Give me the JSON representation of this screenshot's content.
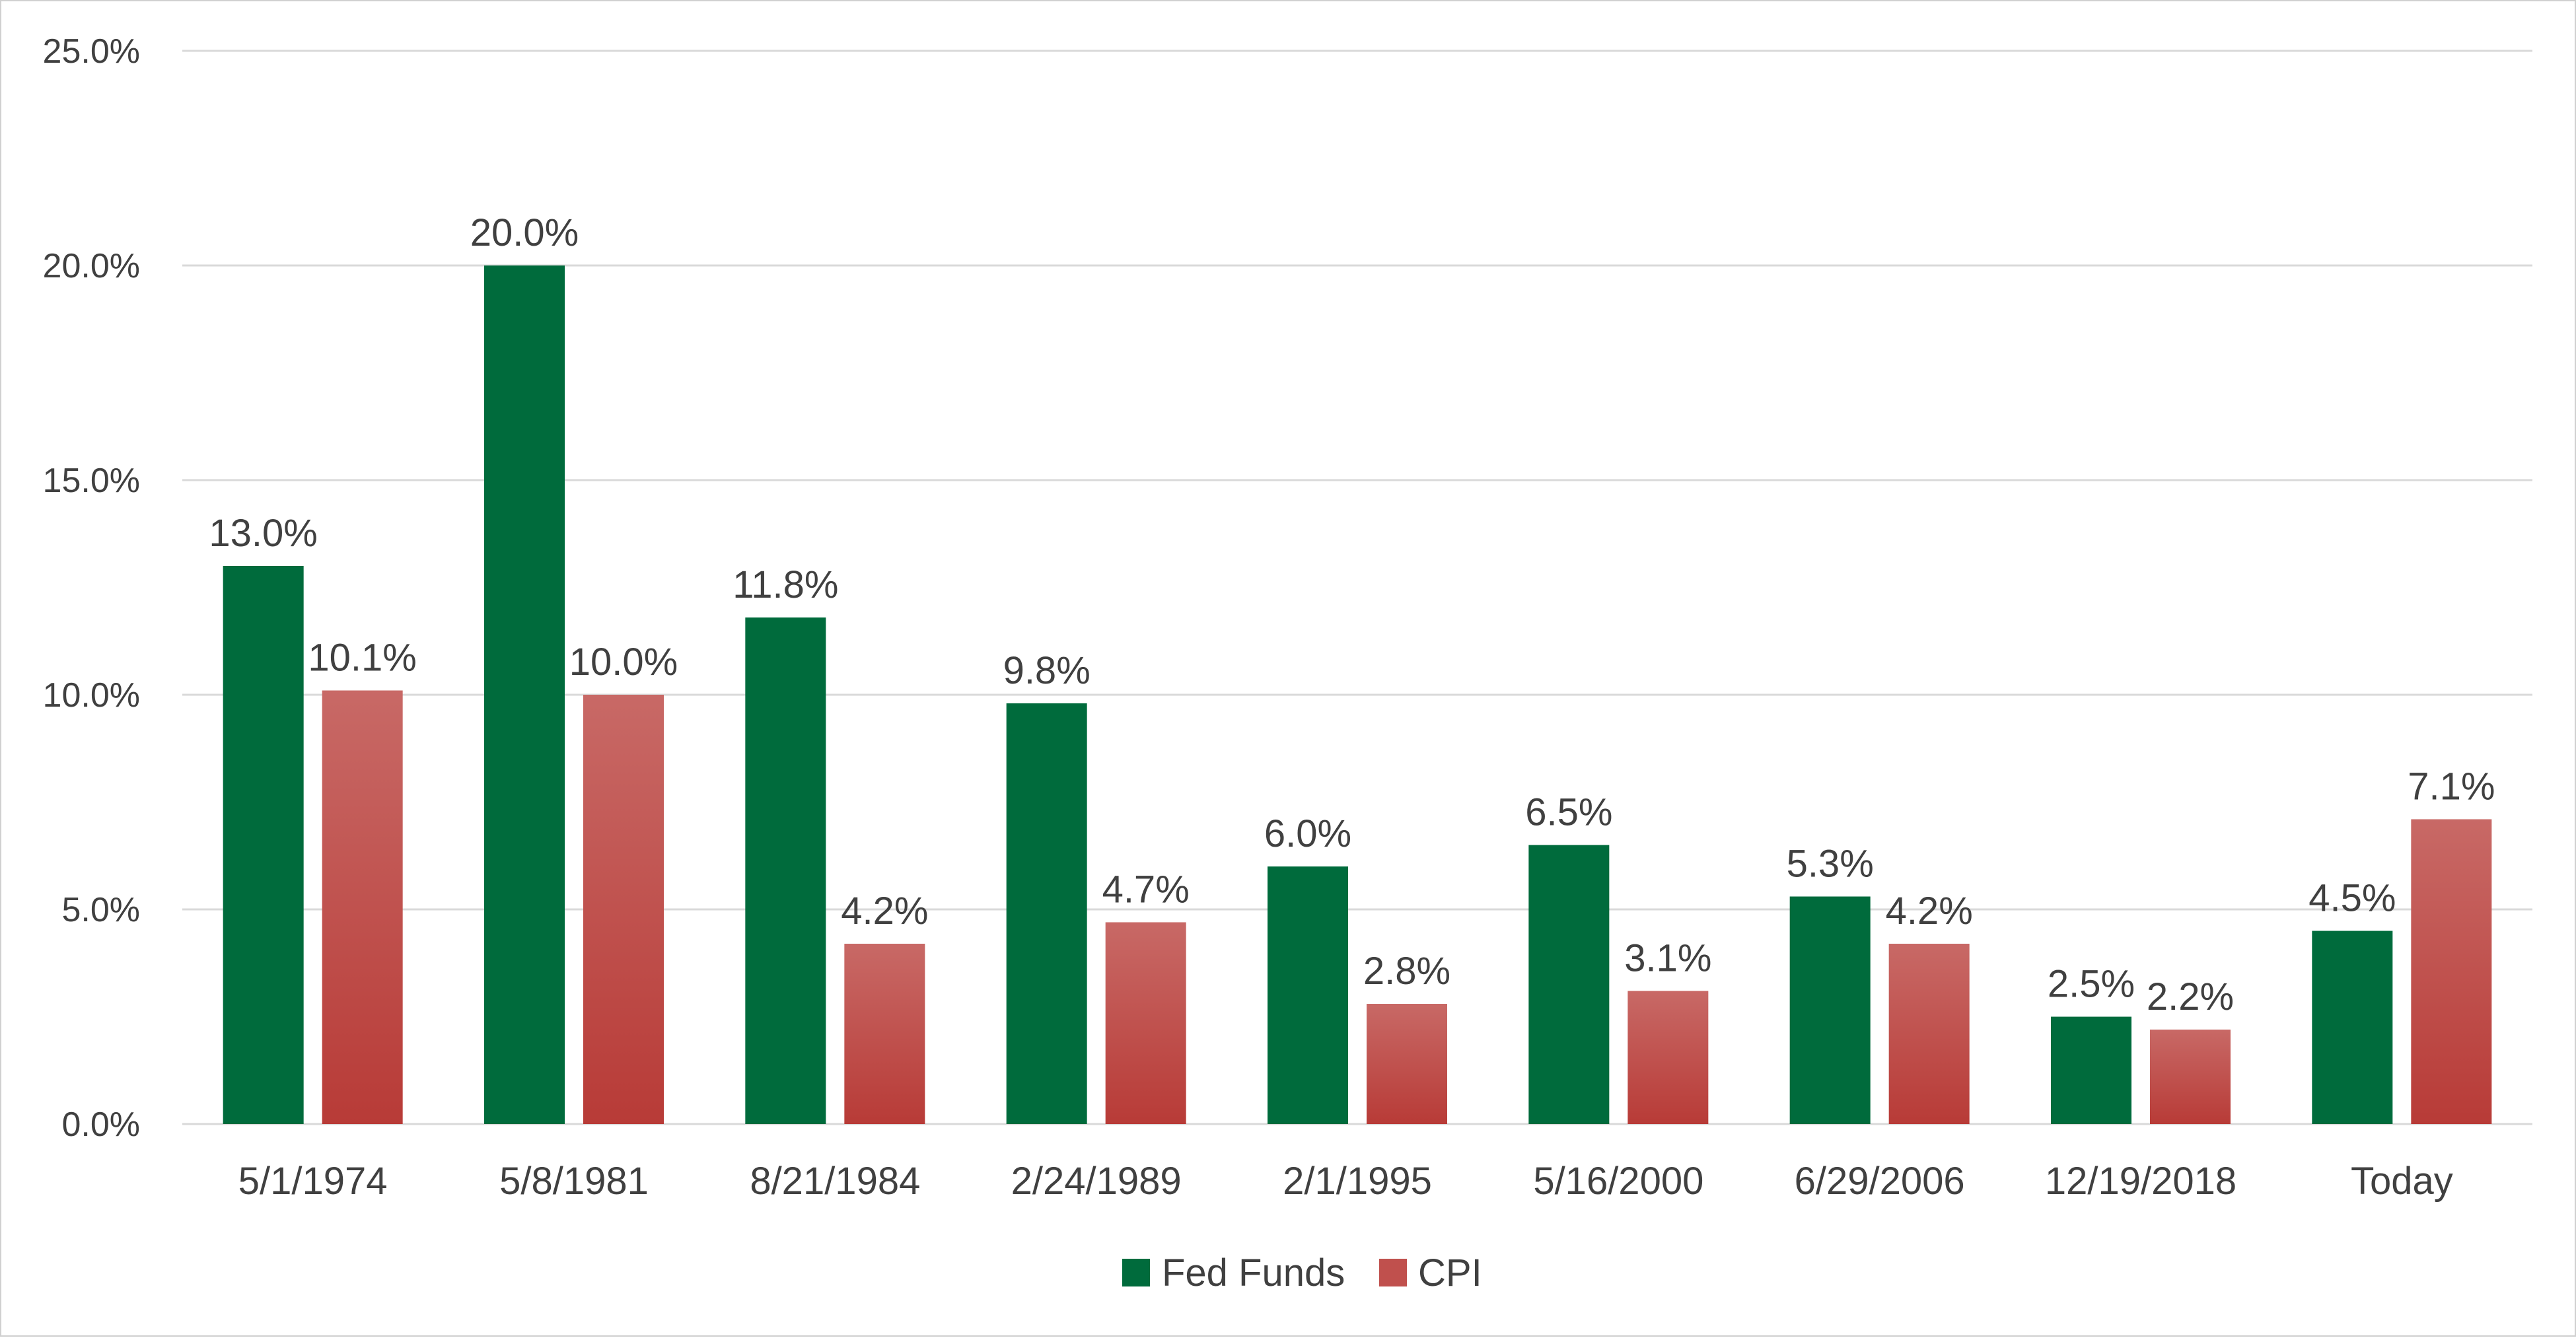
{
  "chart_data": {
    "type": "bar",
    "categories": [
      "5/1/1974",
      "5/8/1981",
      "8/21/1984",
      "2/24/1989",
      "2/1/1995",
      "5/16/2000",
      "6/29/2006",
      "12/19/2018",
      "Today"
    ],
    "series": [
      {
        "name": "Fed Funds",
        "values": [
          13.0,
          20.0,
          11.8,
          9.8,
          6.0,
          6.5,
          5.3,
          2.5,
          4.5
        ],
        "color": "#006b3c"
      },
      {
        "name": "CPI",
        "values": [
          10.1,
          10.0,
          4.2,
          4.7,
          2.8,
          3.1,
          4.2,
          2.2,
          7.1
        ],
        "color": "#c0504d"
      }
    ],
    "data_labels": {
      "Fed Funds": [
        "13.0%",
        "20.0%",
        "11.8%",
        "9.8%",
        "6.0%",
        "6.5%",
        "5.3%",
        "2.5%",
        "4.5%"
      ],
      "CPI": [
        "10.1%",
        "10.0%",
        "4.2%",
        "4.7%",
        "2.8%",
        "3.1%",
        "4.2%",
        "2.2%",
        "7.1%"
      ]
    },
    "yticks": [
      "0.0%",
      "5.0%",
      "10.0%",
      "15.0%",
      "20.0%",
      "25.0%"
    ],
    "ylim": [
      0,
      25
    ],
    "title": "",
    "xlabel": "",
    "ylabel": "",
    "grid": true,
    "legend": "bottom-center"
  }
}
